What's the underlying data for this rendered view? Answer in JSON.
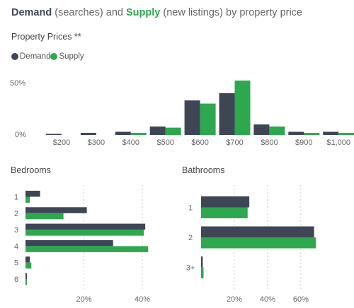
{
  "header": {
    "demand_word": "Demand",
    "middle_1": " (searches) and ",
    "supply_word": "Supply",
    "middle_2": " (new listings) by property price"
  },
  "colors": {
    "demand": "#3e4656",
    "supply": "#2ea84f",
    "grid": "#cccccc"
  },
  "chart_data": [
    {
      "type": "bar",
      "title": "Property Prices **",
      "legend": [
        "Demand",
        "Supply"
      ],
      "legend_position": "top-left",
      "categories": [
        "$200",
        "$300",
        "$400",
        "$500",
        "$600",
        "$700",
        "$800",
        "$900",
        "$1,000"
      ],
      "series": [
        {
          "name": "Demand",
          "values": [
            1,
            2,
            3,
            8,
            33,
            40,
            10,
            3,
            3
          ]
        },
        {
          "name": "Supply",
          "values": [
            0,
            0,
            2,
            7,
            30,
            52,
            8,
            2,
            2
          ]
        }
      ],
      "ylim": [
        0,
        50
      ],
      "yticks": [
        "0%",
        "50%"
      ],
      "grid": false
    },
    {
      "type": "bar",
      "orientation": "horizontal",
      "title": "Bedrooms",
      "categories": [
        "1",
        "2",
        "3",
        "4",
        "5",
        "6"
      ],
      "series": [
        {
          "name": "Demand",
          "values": [
            5,
            21,
            41,
            30,
            1.5,
            0.3
          ]
        },
        {
          "name": "Supply",
          "values": [
            1.5,
            13,
            40.5,
            42,
            2,
            0.5
          ]
        }
      ],
      "xlim": [
        0,
        48
      ],
      "xticks": [
        "20%",
        "40%"
      ],
      "grid": true
    },
    {
      "type": "bar",
      "orientation": "horizontal",
      "title": "Bathrooms",
      "categories": [
        "1",
        "2",
        "3+"
      ],
      "series": [
        {
          "name": "Demand",
          "values": [
            29,
            68,
            1
          ]
        },
        {
          "name": "Supply",
          "values": [
            28,
            69,
            1.5
          ]
        }
      ],
      "xlim": [
        0,
        92
      ],
      "xticks": [
        "20%",
        "40%",
        "60%"
      ],
      "grid": true
    }
  ]
}
